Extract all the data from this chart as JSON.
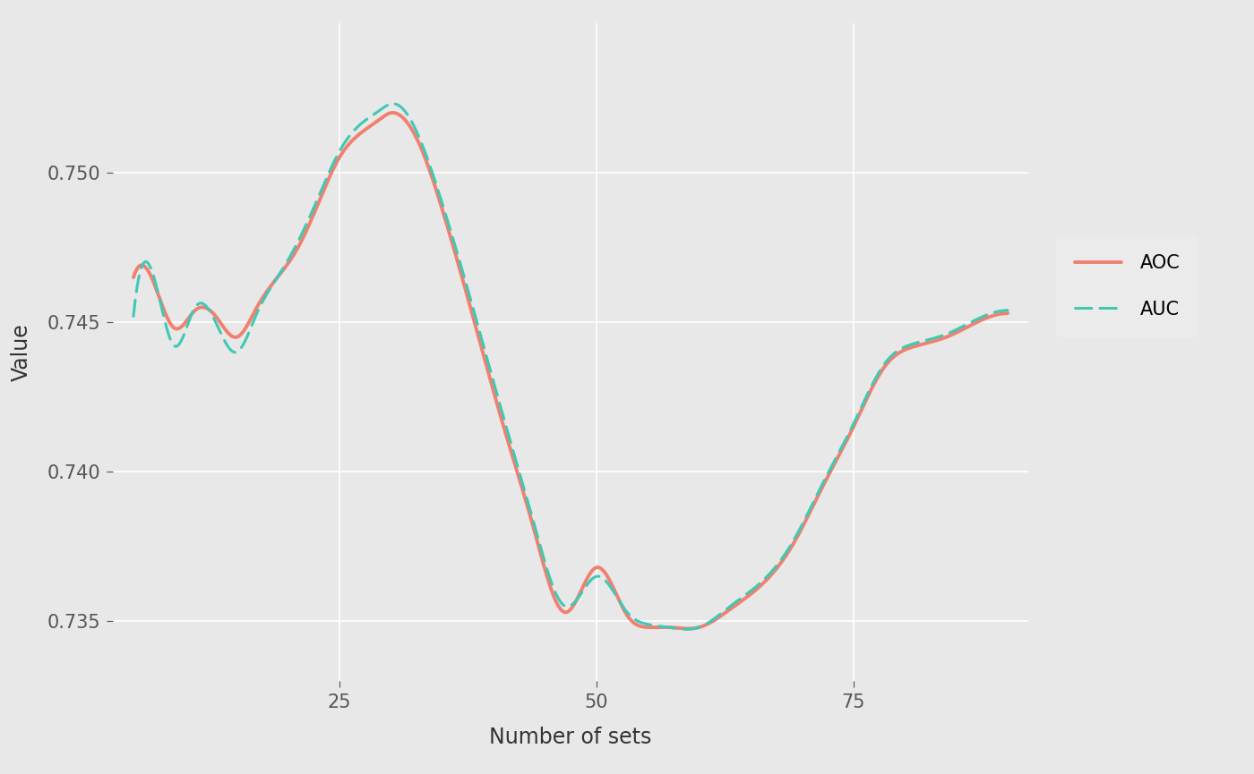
{
  "x": [
    5,
    7,
    9,
    11,
    13,
    15,
    17,
    19,
    21,
    23,
    25,
    27,
    29,
    30,
    31,
    33,
    35,
    38,
    41,
    44,
    47,
    50,
    53,
    55,
    57,
    60,
    63,
    66,
    69,
    72,
    75,
    78,
    81,
    84,
    87,
    90
  ],
  "aoc_y": [
    0.7465,
    0.7463,
    0.7448,
    0.7454,
    0.7452,
    0.7445,
    0.7455,
    0.7465,
    0.7475,
    0.749,
    0.7505,
    0.7513,
    0.7518,
    0.752,
    0.7519,
    0.7508,
    0.7488,
    0.7452,
    0.7415,
    0.738,
    0.7353,
    0.7368,
    0.7352,
    0.7348,
    0.7348,
    0.7348,
    0.7354,
    0.7362,
    0.7375,
    0.7395,
    0.7415,
    0.7435,
    0.7442,
    0.7445,
    0.745,
    0.7453
  ],
  "auc_y": [
    0.7452,
    0.7465,
    0.7442,
    0.7455,
    0.745,
    0.744,
    0.7453,
    0.7465,
    0.7477,
    0.7492,
    0.7507,
    0.7516,
    0.7521,
    0.7523,
    0.7522,
    0.751,
    0.749,
    0.7455,
    0.7418,
    0.7382,
    0.7355,
    0.7365,
    0.7353,
    0.7349,
    0.7348,
    0.7348,
    0.7355,
    0.7363,
    0.7376,
    0.7396,
    0.7416,
    0.7436,
    0.7443,
    0.7446,
    0.7451,
    0.7454
  ],
  "aoc_color": "#F08070",
  "auc_color": "#3EC9B5",
  "aoc_label": "AOC",
  "auc_label": "AUC",
  "xlabel": "Number of sets",
  "ylabel": "Value",
  "xlim": [
    3,
    92
  ],
  "ylim": [
    0.733,
    0.755
  ],
  "xticks": [
    25,
    50,
    75
  ],
  "yticks": [
    0.735,
    0.74,
    0.745,
    0.75
  ],
  "background_color": "#E8E8E8",
  "grid_color": "#FFFFFF",
  "legend_bg": "#EBEBEB",
  "aoc_linewidth": 2.8,
  "auc_linewidth": 2.2,
  "font_size_axis_label": 17,
  "font_size_tick": 15,
  "font_size_legend": 15
}
